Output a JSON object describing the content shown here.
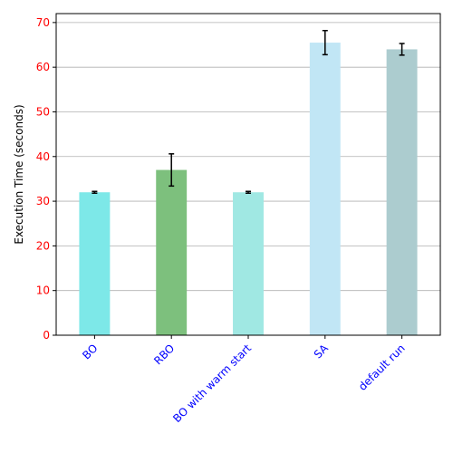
{
  "chart_data": {
    "type": "bar",
    "categories": [
      "BO",
      "RBO",
      "BO with warm start",
      "SA",
      "default run"
    ],
    "values": [
      32.0,
      37.0,
      32.0,
      65.5,
      64.0
    ],
    "errors": [
      0.2,
      3.6,
      0.2,
      2.7,
      1.3
    ],
    "bar_colors": [
      "#7de8e8",
      "#7dc07d",
      "#a0e8e3",
      "#c1e6f5",
      "#accccf"
    ],
    "title": "",
    "xlabel": "",
    "ylabel": "Execution Time (seconds)",
    "ylim": [
      0,
      72
    ],
    "yticks": [
      0,
      10,
      20,
      30,
      40,
      50,
      60,
      70
    ],
    "grid": "horizontal",
    "ytick_color": "#ff0000",
    "xtick_color": "#0000ff",
    "xtick_rotation": 45
  }
}
